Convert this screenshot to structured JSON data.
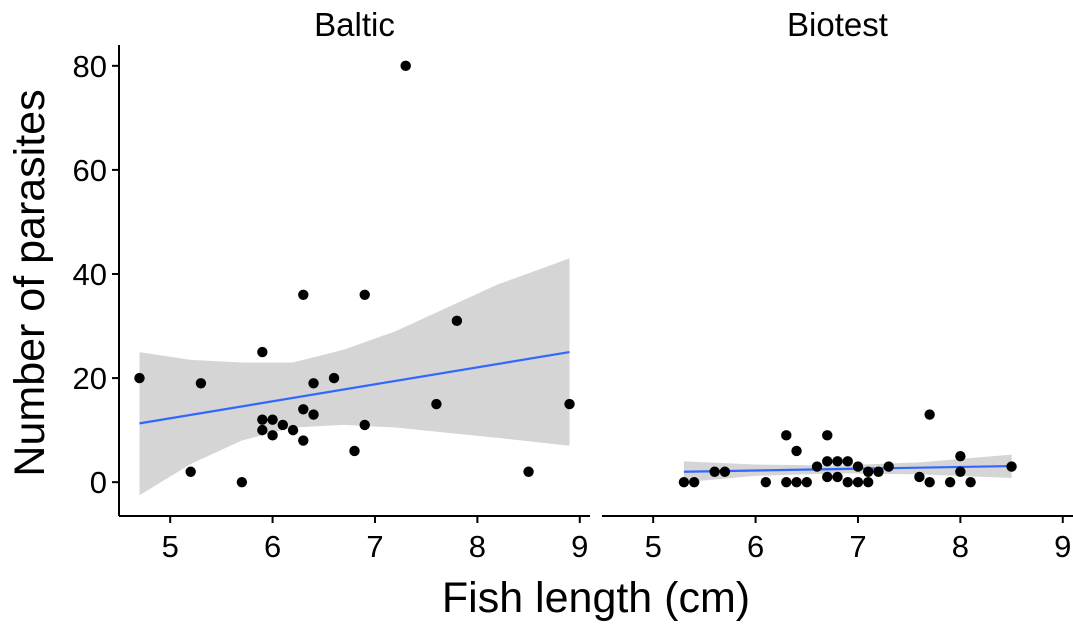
{
  "chart_data": {
    "type": "scatter",
    "xlabel": "Fish length (cm)",
    "ylabel": "Number of parasites",
    "xlim": [
      4.5,
      9.1
    ],
    "ylim": [
      -6.5,
      84
    ],
    "x_ticks": [
      5,
      6,
      7,
      8,
      9
    ],
    "y_ticks": [
      0,
      20,
      40,
      60,
      80
    ],
    "grid": false,
    "colors": {
      "points": "#000000",
      "fit_line": "#3366FF",
      "ribbon": "#D3D3D3"
    },
    "panels": [
      {
        "title": "Baltic",
        "points": [
          [
            4.7,
            20
          ],
          [
            5.2,
            2
          ],
          [
            5.3,
            19
          ],
          [
            5.7,
            0
          ],
          [
            5.9,
            25
          ],
          [
            5.9,
            12
          ],
          [
            5.9,
            10
          ],
          [
            6.0,
            12
          ],
          [
            6.0,
            9
          ],
          [
            6.1,
            11
          ],
          [
            6.2,
            10
          ],
          [
            6.3,
            36
          ],
          [
            6.3,
            14
          ],
          [
            6.3,
            8
          ],
          [
            6.4,
            19
          ],
          [
            6.4,
            13
          ],
          [
            6.6,
            20
          ],
          [
            6.8,
            6
          ],
          [
            6.9,
            36
          ],
          [
            6.9,
            11
          ],
          [
            7.3,
            80
          ],
          [
            7.6,
            15
          ],
          [
            7.8,
            31
          ],
          [
            8.5,
            2
          ],
          [
            8.9,
            15
          ]
        ],
        "fit": {
          "x": [
            4.7,
            8.9
          ],
          "y": [
            11.3,
            25.0
          ]
        },
        "band": {
          "x": [
            4.7,
            5.2,
            5.7,
            6.2,
            6.7,
            7.2,
            7.7,
            8.2,
            8.9
          ],
          "lower": [
            -2.5,
            3.5,
            8.0,
            10.5,
            11.0,
            10.5,
            9.5,
            8.5,
            7.0
          ],
          "upper": [
            25.0,
            23.5,
            23.0,
            23.0,
            25.5,
            29.0,
            33.5,
            38.0,
            43.0
          ]
        }
      },
      {
        "title": "Biotest",
        "points": [
          [
            5.3,
            0
          ],
          [
            5.4,
            0
          ],
          [
            5.6,
            2
          ],
          [
            5.7,
            2
          ],
          [
            6.1,
            0
          ],
          [
            6.3,
            9
          ],
          [
            6.3,
            0
          ],
          [
            6.4,
            6
          ],
          [
            6.4,
            0
          ],
          [
            6.5,
            0
          ],
          [
            6.6,
            3
          ],
          [
            6.7,
            9
          ],
          [
            6.7,
            4
          ],
          [
            6.7,
            1
          ],
          [
            6.8,
            4
          ],
          [
            6.8,
            1
          ],
          [
            6.9,
            4
          ],
          [
            6.9,
            0
          ],
          [
            7.0,
            3
          ],
          [
            7.0,
            0
          ],
          [
            7.1,
            2
          ],
          [
            7.1,
            0
          ],
          [
            7.2,
            2
          ],
          [
            7.3,
            3
          ],
          [
            7.6,
            1
          ],
          [
            7.7,
            13
          ],
          [
            7.7,
            0
          ],
          [
            7.9,
            0
          ],
          [
            8.0,
            5
          ],
          [
            8.0,
            2
          ],
          [
            8.1,
            0
          ],
          [
            8.5,
            3
          ]
        ],
        "fit": {
          "x": [
            5.3,
            8.5
          ],
          "y": [
            2.0,
            3.1
          ]
        },
        "band": {
          "x": [
            5.3,
            6.0,
            6.8,
            7.6,
            8.5
          ],
          "lower": [
            0.0,
            1.2,
            1.7,
            1.5,
            0.8
          ],
          "upper": [
            4.0,
            3.4,
            3.2,
            3.8,
            5.3
          ]
        }
      }
    ]
  }
}
